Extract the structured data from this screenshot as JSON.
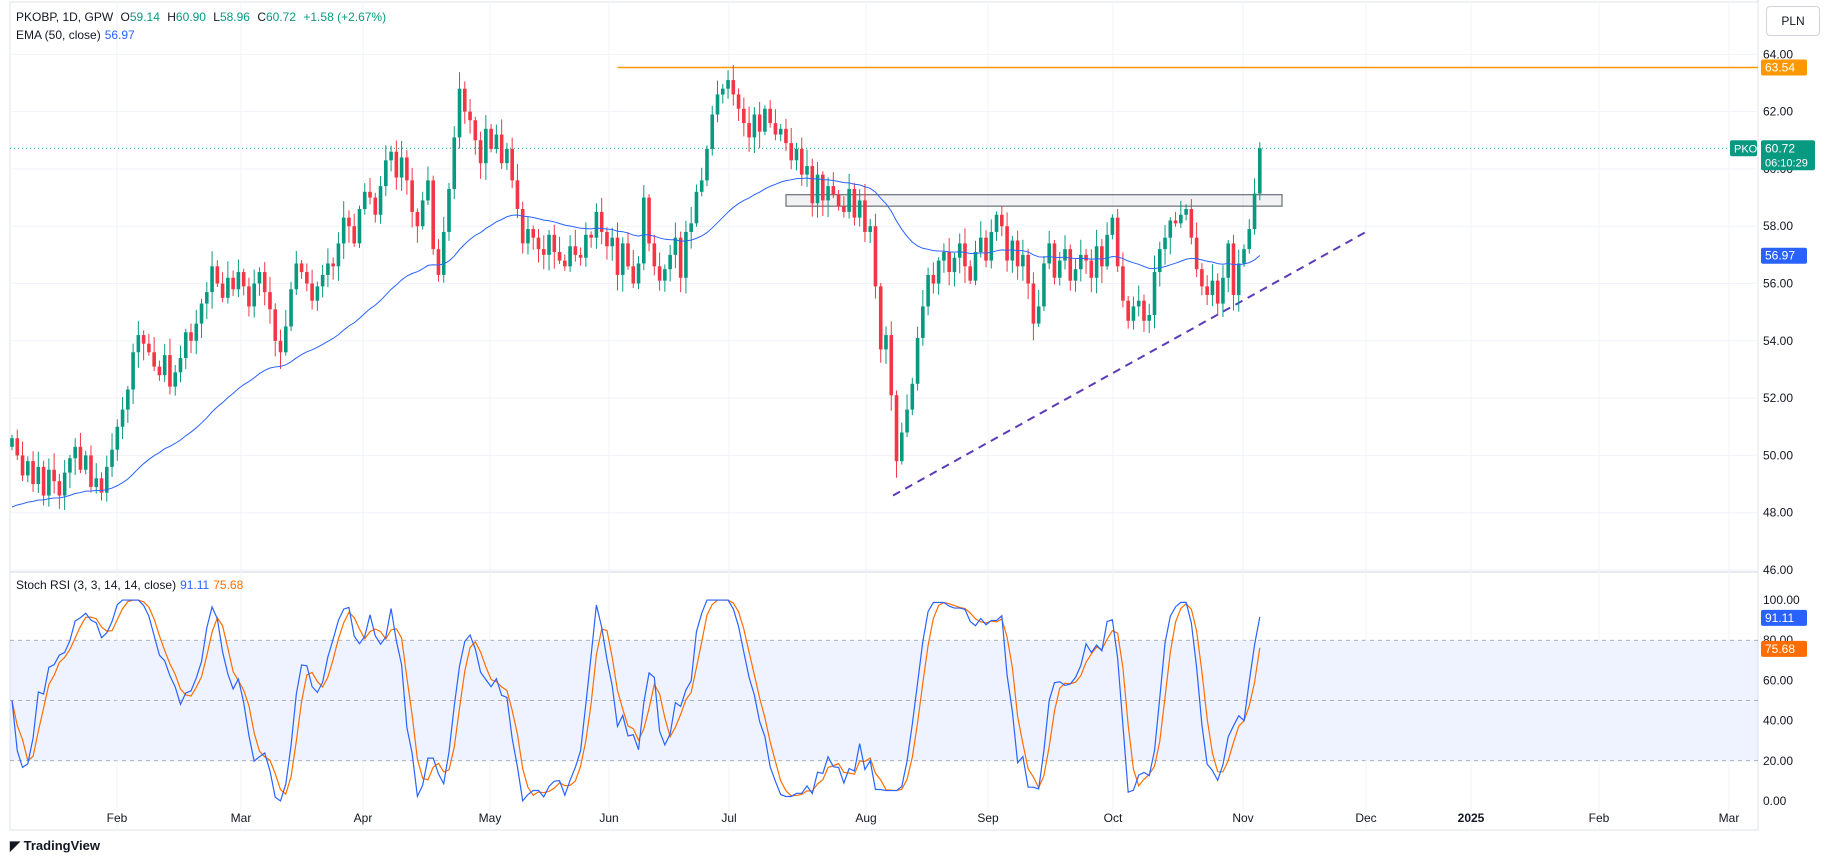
{
  "header": {
    "symbol": "PKOBP, 1D, GPW",
    "o_label": "O",
    "o": "59.14",
    "h_label": "H",
    "h": "60.90",
    "l_label": "L",
    "l": "58.96",
    "c_label": "C",
    "c": "60.72",
    "change": "+1.58 (+2.67%)",
    "ema_label": "EMA (50, close)",
    "ema_value": "56.97",
    "stoch_label": "Stoch RSI (3, 3, 14, 14, close)",
    "stoch_k": "91.11",
    "stoch_d": "75.68"
  },
  "currency_button": "PLN",
  "branding": "TradingView",
  "price_tag": {
    "symbol": "PKO",
    "price": "60.72",
    "countdown": "06:10:29"
  },
  "level_tag": "63.54",
  "ema_tag": "56.97",
  "colors": {
    "up": "#089981",
    "down": "#f23645",
    "ema": "#2962ff",
    "stochK": "#2962ff",
    "stochD": "#ff6d00",
    "level": "#ff9800",
    "trend": "#5c3bb8"
  },
  "chart_data": {
    "type": "candlestick",
    "symbol": "PKOBP",
    "interval": "1D",
    "x_axis_labels": [
      "Feb",
      "Mar",
      "Apr",
      "May",
      "Jun",
      "Jul",
      "Aug",
      "Sep",
      "Oct",
      "Nov",
      "Dec",
      "2025",
      "Feb",
      "Mar"
    ],
    "price_axis": {
      "ylim": [
        46.0,
        64.5
      ],
      "ticks": [
        "46.00",
        "48.00",
        "50.00",
        "52.00",
        "54.00",
        "56.00",
        "58.00",
        "60.00",
        "62.00",
        "64.00"
      ]
    },
    "stoch_axis": {
      "ylim": [
        -7,
        105
      ],
      "ticks": [
        "0.00",
        "20.00",
        "40.00",
        "60.00",
        "80.00",
        "100.00"
      ],
      "band": [
        20,
        80
      ]
    },
    "closes": [
      50.6,
      50.0,
      49.3,
      49.8,
      49.0,
      49.6,
      48.6,
      49.5,
      49.1,
      48.6,
      49.4,
      49.9,
      50.3,
      49.5,
      50.0,
      48.9,
      49.2,
      48.7,
      49.6,
      50.2,
      51.0,
      51.6,
      52.3,
      53.6,
      54.2,
      53.9,
      53.6,
      53.1,
      52.8,
      53.5,
      52.4,
      52.9,
      53.4,
      54.3,
      54.0,
      54.6,
      55.3,
      55.7,
      56.6,
      56.0,
      55.5,
      56.2,
      55.8,
      56.4,
      55.9,
      55.2,
      56.0,
      56.4,
      55.7,
      55.1,
      54.0,
      53.6,
      54.5,
      55.8,
      56.7,
      56.4,
      56.0,
      55.4,
      55.9,
      56.3,
      56.7,
      56.6,
      57.4,
      58.3,
      58.0,
      57.4,
      58.6,
      59.2,
      59.0,
      58.4,
      59.4,
      60.3,
      60.6,
      59.7,
      60.4,
      59.6,
      58.5,
      58.0,
      58.9,
      59.6,
      57.2,
      56.3,
      57.8,
      59.3,
      61.1,
      62.8,
      62.0,
      61.7,
      61.0,
      60.2,
      61.4,
      60.7,
      61.2,
      60.2,
      60.7,
      59.6,
      58.6,
      57.4,
      57.9,
      57.6,
      57.2,
      57.0,
      57.7,
      57.1,
      56.8,
      56.6,
      57.3,
      57.0,
      56.9,
      57.7,
      57.6,
      58.5,
      57.8,
      57.3,
      57.6,
      56.3,
      57.4,
      56.6,
      56.0,
      56.7,
      59.0,
      57.4,
      56.6,
      56.1,
      56.5,
      57.0,
      57.6,
      56.2,
      57.8,
      58.1,
      59.2,
      59.6,
      60.7,
      61.9,
      62.6,
      62.8,
      63.1,
      62.6,
      62.1,
      61.6,
      61.1,
      61.9,
      61.3,
      62.1,
      61.6,
      61.2,
      61.4,
      60.9,
      60.3,
      60.7,
      59.8,
      60.1,
      58.8,
      59.8,
      58.9,
      59.4,
      59.1,
      58.7,
      58.5,
      59.3,
      58.3,
      58.9,
      57.8,
      58.0,
      55.9,
      53.7,
      54.2,
      52.1,
      49.8,
      50.8,
      51.6,
      52.5,
      54.1,
      55.2,
      56.3,
      56.0,
      56.8,
      57.1,
      56.4,
      56.9,
      57.4,
      56.6,
      56.1,
      57.1,
      57.6,
      56.8,
      57.8,
      58.4,
      58.0,
      56.8,
      57.5,
      56.6,
      57.0,
      56.0,
      54.6,
      55.2,
      56.7,
      57.4,
      56.2,
      56.8,
      57.2,
      56.1,
      56.5,
      57.0,
      56.8,
      56.2,
      57.3,
      56.6,
      57.7,
      58.3,
      56.6,
      55.4,
      54.7,
      55.2,
      55.4,
      54.7,
      54.9,
      56.4,
      57.2,
      57.6,
      58.2,
      58.1,
      58.4,
      58.6,
      57.6,
      56.5,
      55.9,
      55.6,
      56.1,
      55.3,
      56.2,
      57.4,
      55.6,
      56.7,
      57.2,
      57.9,
      59.14,
      60.72
    ],
    "ema": {
      "name": "EMA (50, close)",
      "last": 56.97
    },
    "resistance_level": 63.54,
    "last_price": 60.72,
    "consolidation_zone": [
      58.7,
      59.1
    ],
    "trendline": {
      "from": 48.6,
      "to": 57.8
    },
    "stoch_rsi": {
      "k_last": 91.11,
      "d_last": 75.68
    }
  }
}
